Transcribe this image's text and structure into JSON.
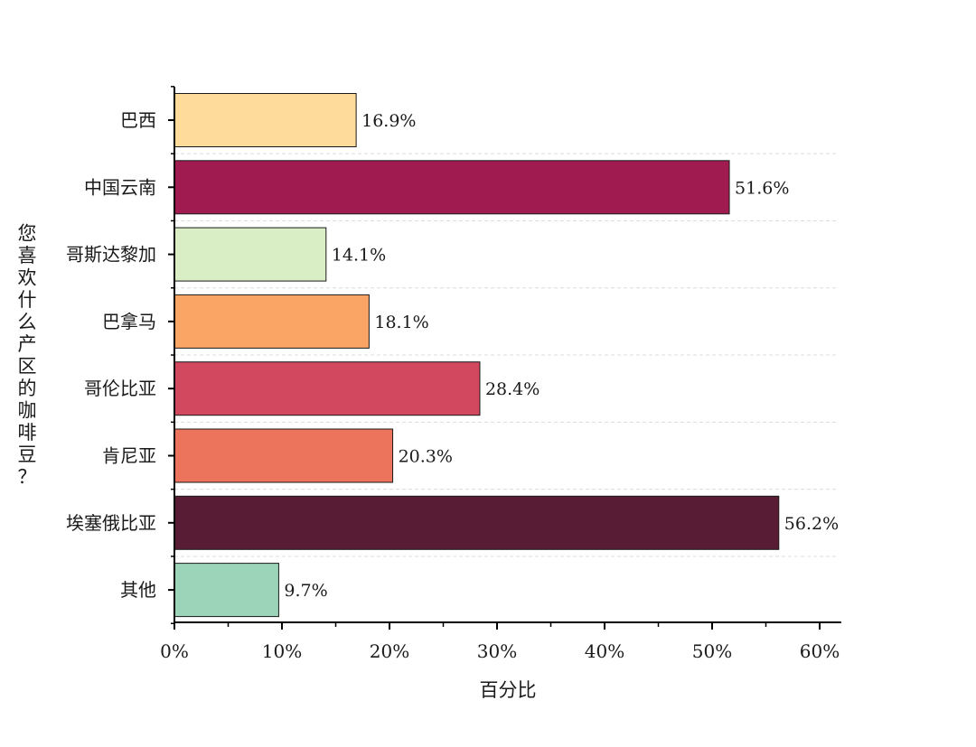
{
  "chart_data": {
    "type": "bar",
    "orientation": "horizontal",
    "categories": [
      "巴西",
      "中国云南",
      "哥斯达黎加",
      "巴拿马",
      "哥伦比亚",
      "肯尼亚",
      "埃塞俄比亚",
      "其他"
    ],
    "values": [
      16.9,
      51.6,
      14.1,
      18.1,
      28.4,
      20.3,
      56.2,
      9.7
    ],
    "data_labels": [
      "16.9%",
      "51.6%",
      "14.1%",
      "18.1%",
      "28.4%",
      "20.3%",
      "56.2%",
      "9.7%"
    ],
    "colors": [
      "#fedb9b",
      "#a01b50",
      "#d9eec5",
      "#faa466",
      "#d1485f",
      "#ec735c",
      "#581c34",
      "#9bd4b8"
    ],
    "xlabel": "百分比",
    "ylabel": "您喜欢什么产区的咖啡豆？",
    "xlim": [
      0,
      62
    ],
    "xticks": [
      0,
      10,
      20,
      30,
      40,
      50,
      60
    ],
    "xtick_labels": [
      "0%",
      "10%",
      "20%",
      "30%",
      "40%",
      "50%",
      "60%"
    ],
    "grid": "horizontal dashed",
    "legend": "none"
  }
}
